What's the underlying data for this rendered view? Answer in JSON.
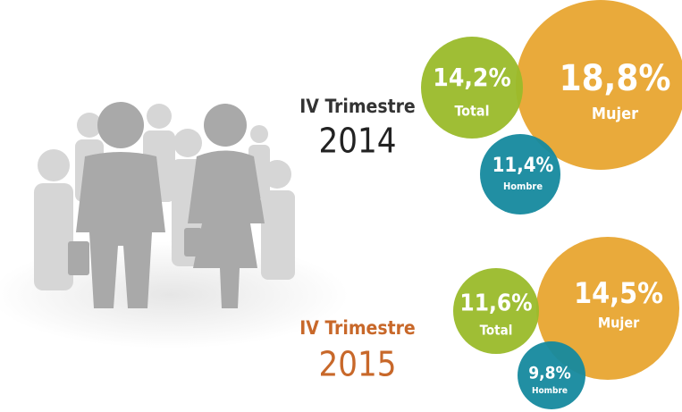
{
  "periods": [
    {
      "label": "IV Trimestre",
      "year": "2014",
      "bubbles": [
        {
          "value": "14,2%",
          "label": "Total"
        },
        {
          "value": "18,8%",
          "label": "Mujer"
        },
        {
          "value": "11,4%",
          "label": "Hombre"
        }
      ]
    },
    {
      "label": "IV Trimestre",
      "year": "2015",
      "bubbles": [
        {
          "value": "11,6%",
          "label": "Total"
        },
        {
          "value": "14,5%",
          "label": "Mujer"
        },
        {
          "value": "9,8%",
          "label": "Hombre"
        }
      ]
    }
  ]
}
